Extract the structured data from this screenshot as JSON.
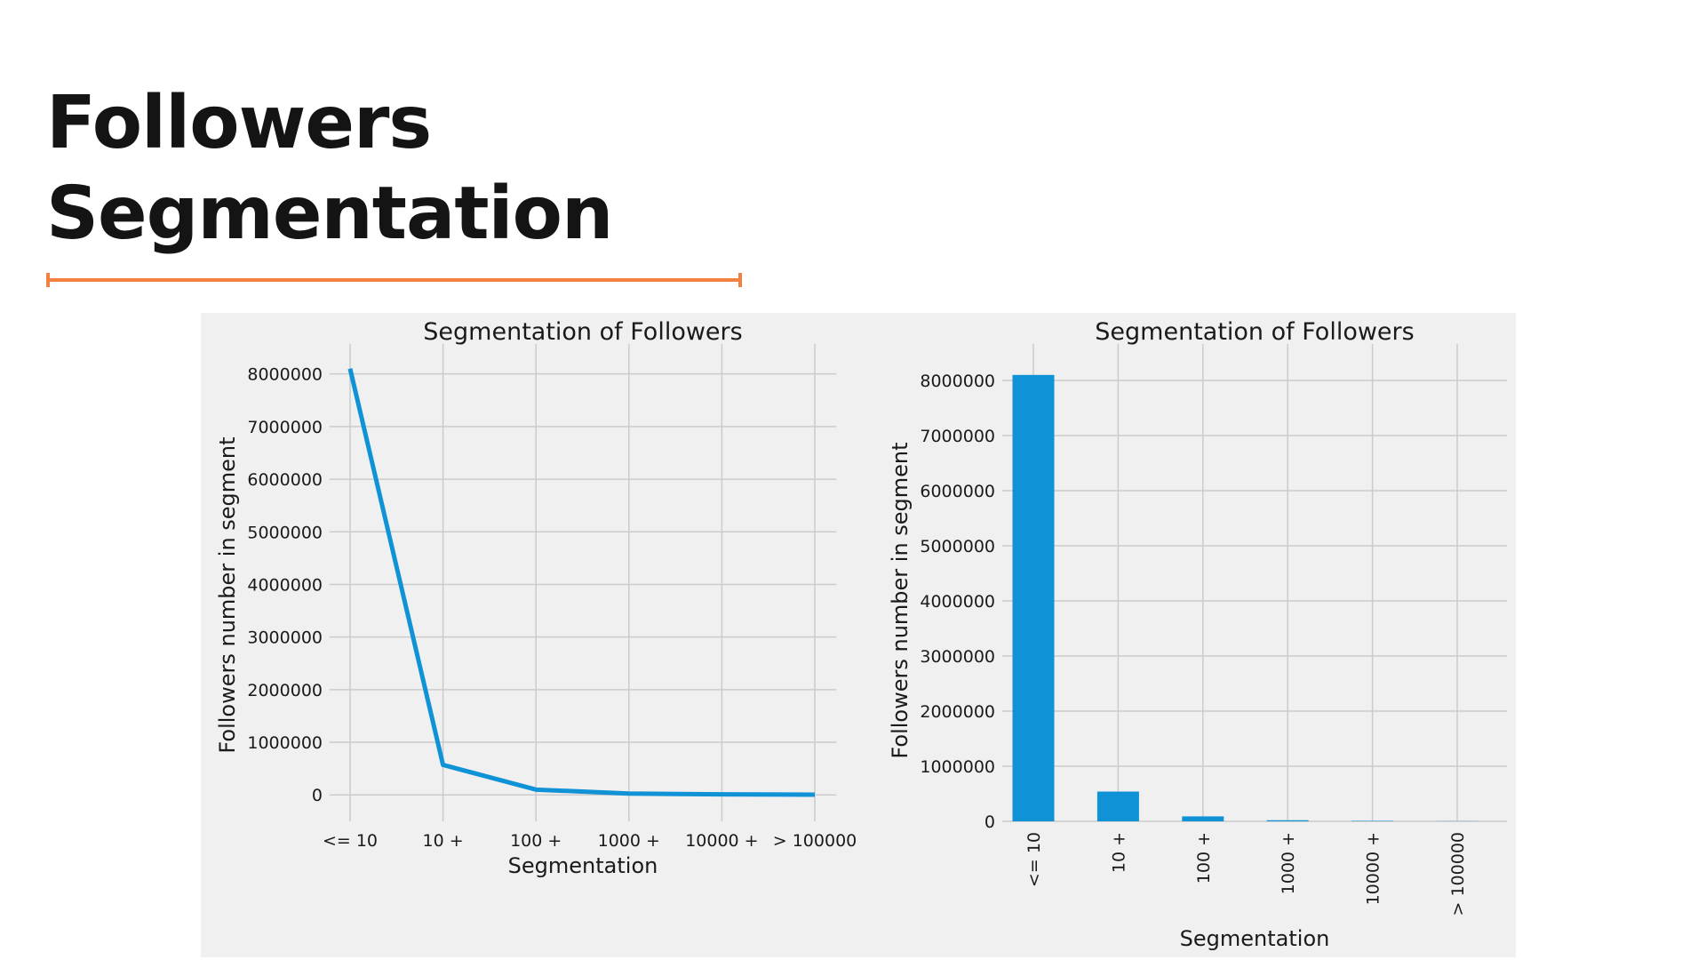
{
  "slide": {
    "title_line1": "Followers",
    "title_line2": "Segmentation",
    "accent_color": "#f2803f"
  },
  "chart_data": [
    {
      "type": "line",
      "title": "Segmentation of Followers",
      "xlabel": "Segmentation",
      "ylabel": "Followers number in segment",
      "categories": [
        "<= 10",
        "10 +",
        "100 +",
        "1000 +",
        "10000 +",
        "> 100000"
      ],
      "series": [
        {
          "values": [
            8100000,
            570000,
            100000,
            25000,
            10000,
            5000
          ],
          "color": "#0f92d6"
        }
      ],
      "ylim": [
        -300000,
        8400000
      ],
      "yticks": [
        0,
        1000000,
        2000000,
        3000000,
        4000000,
        5000000,
        6000000,
        7000000,
        8000000
      ],
      "ytick_labels": [
        "0",
        "1000000",
        "2000000",
        "3000000",
        "4000000",
        "5000000",
        "6000000",
        "7000000",
        "8000000"
      ],
      "grid": true
    },
    {
      "type": "bar",
      "title": "Segmentation of Followers",
      "xlabel": "Segmentation",
      "ylabel": "Followers number in segment",
      "categories": [
        "<= 10",
        "10 +",
        "100 +",
        "1000 +",
        "10000 +",
        "> 100000"
      ],
      "series": [
        {
          "values": [
            8100000,
            540000,
            90000,
            20000,
            8000,
            3000
          ],
          "color": "#0f92d6"
        }
      ],
      "ylim": [
        0,
        8500000
      ],
      "yticks": [
        0,
        1000000,
        2000000,
        3000000,
        4000000,
        5000000,
        6000000,
        7000000,
        8000000
      ],
      "ytick_labels": [
        "0",
        "1000000",
        "2000000",
        "3000000",
        "4000000",
        "5000000",
        "6000000",
        "7000000",
        "8000000"
      ],
      "grid": true
    }
  ]
}
